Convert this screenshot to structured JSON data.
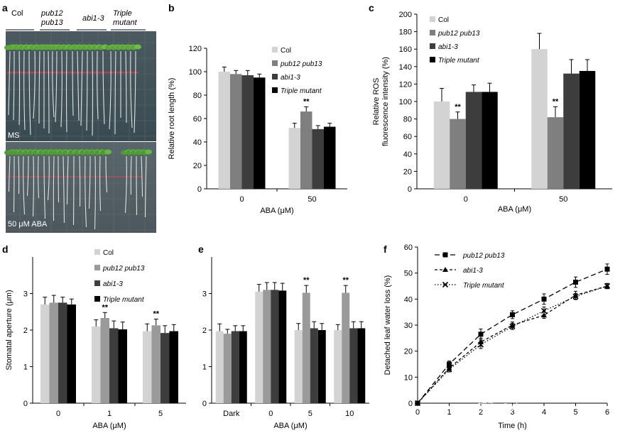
{
  "figure": {
    "watermark": "知乎 @shane"
  },
  "panel_a": {
    "label": "a",
    "headers": [
      "Col",
      "pub12\npub13",
      "abi1-3",
      "Triple\nmutant"
    ],
    "top_condition": "MS",
    "bottom_condition": "50 μM ABA"
  },
  "chart_data": [
    {
      "id": "b",
      "label": "b",
      "type": "bar",
      "xlabel": "ABA (μM)",
      "ylabel": "Relative root length (%)",
      "ylim": [
        0,
        120
      ],
      "yticks": [
        0,
        20,
        40,
        60,
        80,
        100,
        120
      ],
      "categories": [
        "0",
        "50"
      ],
      "series": [
        {
          "name": "Col",
          "color": "#d3d3d3",
          "values": [
            100,
            52
          ],
          "errors": [
            4,
            4
          ]
        },
        {
          "name": "pub12 pub13",
          "color": "#7f7f7f",
          "values": [
            98,
            66
          ],
          "errors": [
            3,
            4
          ]
        },
        {
          "name": "abi1-3",
          "color": "#3d3d3d",
          "values": [
            97,
            51
          ],
          "errors": [
            4,
            3
          ]
        },
        {
          "name": "Triple mutant",
          "color": "#000000",
          "values": [
            95,
            53
          ],
          "errors": [
            3,
            3
          ]
        }
      ],
      "annotations": [
        {
          "category": 1,
          "series": 1,
          "text": "**"
        }
      ],
      "legend_italic": [
        false,
        true,
        true,
        true
      ]
    },
    {
      "id": "c",
      "label": "c",
      "type": "bar",
      "xlabel": "ABA (μM)",
      "ylabel": "Relative ROS\nfluorescence intensity (%)",
      "ylim": [
        0,
        200
      ],
      "yticks": [
        0,
        20,
        40,
        60,
        80,
        100,
        120,
        140,
        160,
        180,
        200
      ],
      "categories": [
        "0",
        "50"
      ],
      "series": [
        {
          "name": "Col",
          "color": "#d3d3d3",
          "values": [
            100,
            160
          ],
          "errors": [
            15,
            18
          ]
        },
        {
          "name": "pub12 pub13",
          "color": "#7f7f7f",
          "values": [
            80,
            82
          ],
          "errors": [
            8,
            12
          ]
        },
        {
          "name": "abi1-3",
          "color": "#3d3d3d",
          "values": [
            111,
            132
          ],
          "errors": [
            8,
            16
          ]
        },
        {
          "name": "Triple mutant",
          "color": "#000000",
          "values": [
            111,
            135
          ],
          "errors": [
            10,
            13
          ]
        }
      ],
      "annotations": [
        {
          "category": 0,
          "series": 1,
          "text": "**"
        },
        {
          "category": 1,
          "series": 1,
          "text": "**"
        }
      ],
      "legend_italic": [
        false,
        true,
        true,
        true
      ]
    },
    {
      "id": "d",
      "label": "d",
      "type": "bar",
      "xlabel": "ABA (μM)",
      "ylabel": "Stomatal aperture (μm)",
      "ylim": [
        0,
        4
      ],
      "yticks": [
        0,
        1,
        2,
        3
      ],
      "categories": [
        "0",
        "1",
        "5"
      ],
      "series": [
        {
          "name": "Col",
          "color": "#d3d3d3",
          "values": [
            2.7,
            2.1,
            1.97
          ],
          "errors": [
            0.2,
            0.18,
            0.2
          ]
        },
        {
          "name": "pub12 pub13",
          "color": "#9a9a9a",
          "values": [
            2.75,
            2.33,
            2.13
          ],
          "errors": [
            0.2,
            0.15,
            0.17
          ]
        },
        {
          "name": "abi1-3",
          "color": "#3d3d3d",
          "values": [
            2.75,
            2.05,
            1.92
          ],
          "errors": [
            0.15,
            0.2,
            0.2
          ]
        },
        {
          "name": "Triple mutant",
          "color": "#000000",
          "values": [
            2.7,
            2.02,
            1.97
          ],
          "errors": [
            0.15,
            0.2,
            0.18
          ]
        }
      ],
      "annotations": [
        {
          "category": 1,
          "series": 1,
          "text": "**"
        },
        {
          "category": 2,
          "series": 1,
          "text": "**"
        }
      ],
      "legend_italic": [
        false,
        true,
        true,
        true
      ]
    },
    {
      "id": "e",
      "label": "e",
      "type": "bar",
      "xlabel": "ABA (μM)",
      "ylabel": "",
      "ylim": [
        0,
        4
      ],
      "yticks": [
        0,
        1,
        2,
        3
      ],
      "categories": [
        "Dark",
        "0",
        "5",
        "10"
      ],
      "series": [
        {
          "name": "Col",
          "color": "#d3d3d3",
          "values": [
            1.97,
            3.05,
            2.0,
            2.0
          ],
          "errors": [
            0.2,
            0.2,
            0.18,
            0.15
          ]
        },
        {
          "name": "pub12 pub13",
          "color": "#9a9a9a",
          "values": [
            1.9,
            3.1,
            3.02,
            3.02
          ],
          "errors": [
            0.12,
            0.2,
            0.2,
            0.2
          ]
        },
        {
          "name": "abi1-3",
          "color": "#3d3d3d",
          "values": [
            1.97,
            3.1,
            2.05,
            2.05
          ],
          "errors": [
            0.15,
            0.2,
            0.18,
            0.18
          ]
        },
        {
          "name": "Triple mutant",
          "color": "#000000",
          "values": [
            1.97,
            3.08,
            2.0,
            2.05
          ],
          "errors": [
            0.15,
            0.2,
            0.18,
            0.18
          ]
        }
      ],
      "annotations": [
        {
          "category": 2,
          "series": 1,
          "text": "**"
        },
        {
          "category": 3,
          "series": 1,
          "text": "**"
        }
      ]
    },
    {
      "id": "f",
      "label": "f",
      "type": "line",
      "xlabel": "Time (h)",
      "ylabel": "Detached leaf water loss (%)",
      "xlim": [
        0,
        6
      ],
      "ylim": [
        0,
        60
      ],
      "yticks": [
        0,
        10,
        20,
        30,
        40,
        50,
        60
      ],
      "xticks": [
        0,
        1,
        2,
        3,
        4,
        5,
        6
      ],
      "xticklabels": [
        "0",
        "1",
        "2",
        "3",
        "4",
        "5",
        "6"
      ],
      "series": [
        {
          "name": "pub12 pub13",
          "marker": "square",
          "dash": "7,4",
          "x": [
            0,
            1,
            2,
            3,
            4,
            5,
            6
          ],
          "y": [
            0,
            15,
            26.5,
            34,
            40,
            46.5,
            51.5
          ],
          "errors": [
            0,
            1.2,
            2,
            1.5,
            2,
            2,
            2
          ]
        },
        {
          "name": "abi1-3",
          "marker": "triangle",
          "dash": "4,3",
          "x": [
            0,
            1,
            2,
            3,
            4,
            5,
            6
          ],
          "y": [
            0,
            13.5,
            23.5,
            30,
            33.8,
            41.5,
            45
          ],
          "errors": [
            0,
            1,
            1.5,
            1.2,
            1.2,
            1.5,
            1
          ]
        },
        {
          "name": "Triple mutant",
          "marker": "x",
          "dash": "1.5,2.5",
          "x": [
            0,
            1,
            2,
            3,
            4,
            5,
            6
          ],
          "y": [
            0,
            13,
            22.5,
            29.5,
            35.5,
            41,
            45
          ],
          "errors": [
            0,
            1,
            1.5,
            1.2,
            1.5,
            1.2,
            1
          ]
        }
      ]
    }
  ]
}
